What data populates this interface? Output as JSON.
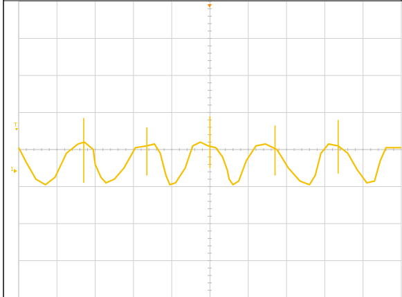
{
  "chart_data": {
    "type": "line",
    "title": "",
    "xlabel": "",
    "ylabel": "",
    "grid": true,
    "x_divisions": 10,
    "y_divisions": 8,
    "xlim": [
      0,
      10
    ],
    "ylim": [
      -4,
      4
    ],
    "series": [
      {
        "color": "#f5c000",
        "x": [
          0.0,
          0.2,
          0.45,
          0.7,
          0.95,
          1.25,
          1.55,
          1.72,
          1.95,
          2.0,
          2.15,
          2.28,
          2.5,
          2.75,
          3.05,
          3.35,
          3.55,
          3.7,
          3.8,
          3.85,
          3.95,
          4.1,
          4.35,
          4.55,
          4.75,
          4.95,
          5.15,
          5.33,
          5.45,
          5.5,
          5.6,
          5.75,
          5.95,
          6.2,
          6.45,
          6.75,
          7.05,
          7.35,
          7.6,
          7.75,
          7.9,
          8.1,
          8.35,
          8.6,
          8.85,
          9.1,
          9.3,
          9.45,
          9.6,
          9.75,
          9.95,
          10.0
        ],
        "values": [
          0.05,
          -0.35,
          -0.8,
          -0.95,
          -0.75,
          -0.1,
          0.15,
          0.2,
          0.0,
          -0.4,
          -0.75,
          -0.9,
          -0.8,
          -0.5,
          0.05,
          0.1,
          0.15,
          -0.1,
          -0.5,
          -0.7,
          -0.95,
          -0.9,
          -0.5,
          0.1,
          0.2,
          0.1,
          0.05,
          -0.2,
          -0.55,
          -0.8,
          -0.95,
          -0.85,
          -0.3,
          0.1,
          0.15,
          0.0,
          -0.5,
          -0.85,
          -0.95,
          -0.7,
          -0.1,
          0.15,
          0.1,
          -0.1,
          -0.55,
          -0.9,
          -0.85,
          -0.3,
          0.05,
          0.05,
          0.05,
          0.05
        ]
      }
    ],
    "spikes": [
      {
        "x": 1.7,
        "high": 0.85,
        "low": -0.9
      },
      {
        "x": 3.35,
        "high": 0.6,
        "low": -0.7
      },
      {
        "x": 5.0,
        "high": 0.9,
        "low": -0.5
      },
      {
        "x": 6.7,
        "high": 0.65,
        "low": -0.7
      },
      {
        "x": 8.35,
        "high": 0.8,
        "low": -0.65
      }
    ]
  },
  "markers": {
    "trigger_level_label": "T",
    "channel_offset_label": "1"
  }
}
